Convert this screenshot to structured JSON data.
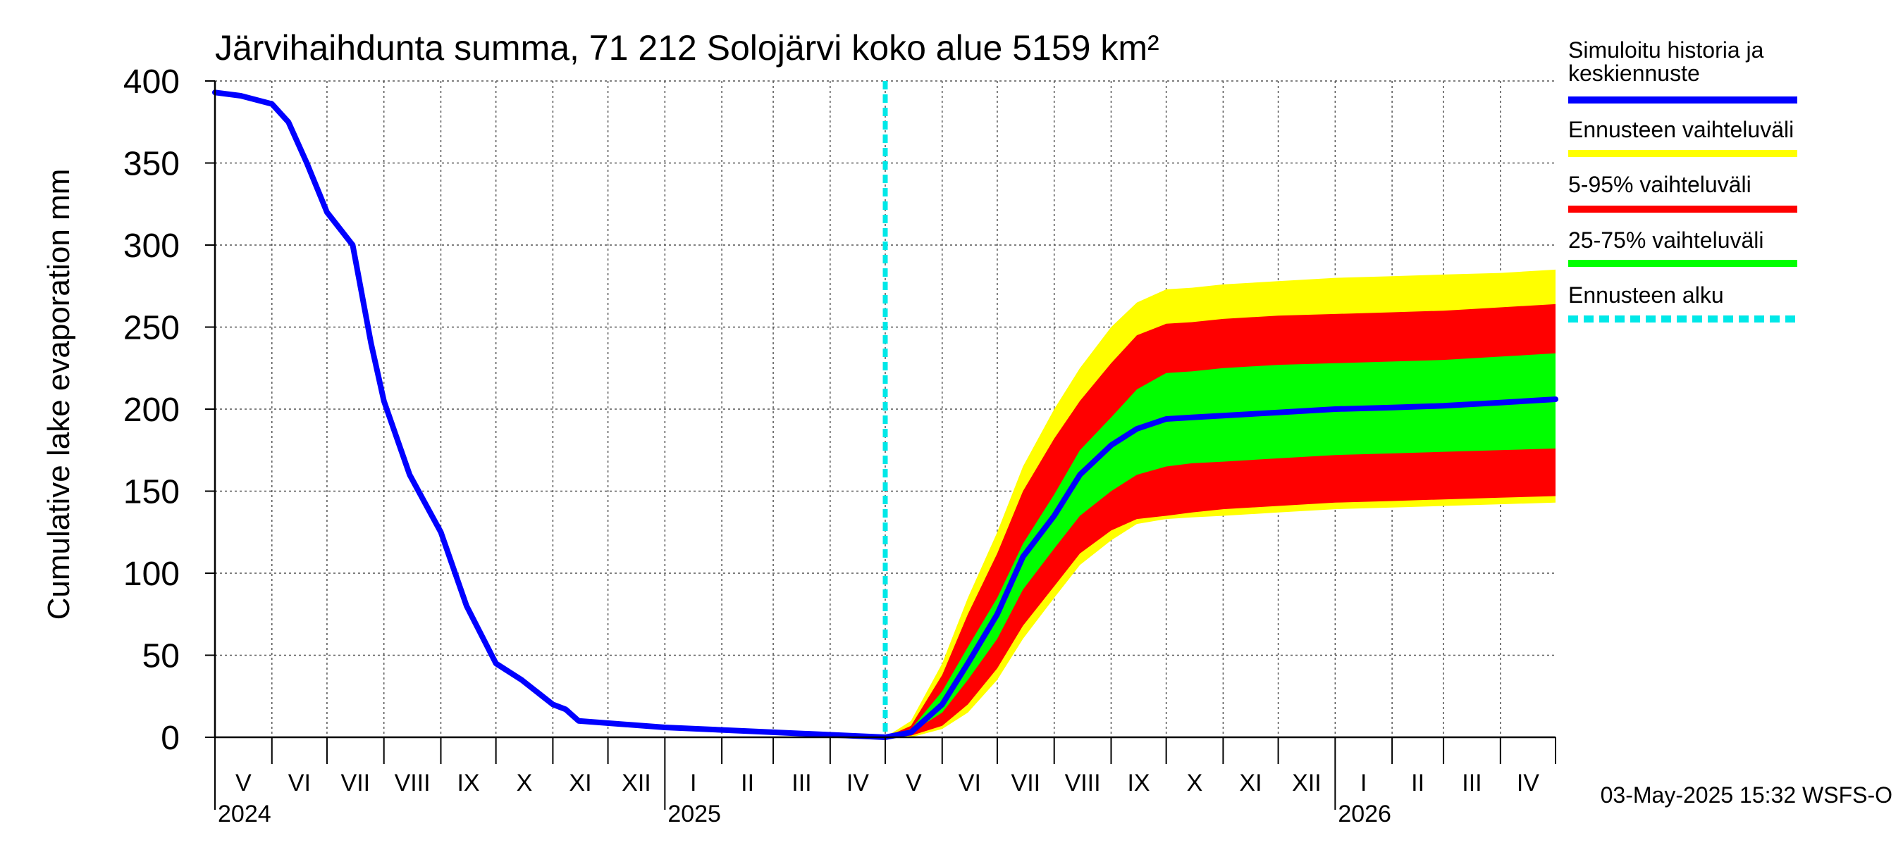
{
  "chart_data": {
    "type": "area",
    "title": "Järvihaihdunta summa, 71 212 Solojärvi koko alue 5159 km²",
    "ylabel": "Cumulative lake evaporation   mm",
    "ylim": [
      0,
      400
    ],
    "yticks": [
      0,
      50,
      100,
      150,
      200,
      250,
      300,
      350,
      400
    ],
    "xlim": [
      "2024-05-01",
      "2026-05-01"
    ],
    "grid": true,
    "legend_position": "right",
    "months": [
      {
        "label": "V",
        "start": "2024-05-01"
      },
      {
        "label": "VI",
        "start": "2024-06-01"
      },
      {
        "label": "VII",
        "start": "2024-07-01"
      },
      {
        "label": "VIII",
        "start": "2024-08-01"
      },
      {
        "label": "IX",
        "start": "2024-09-01"
      },
      {
        "label": "X",
        "start": "2024-10-01"
      },
      {
        "label": "XI",
        "start": "2024-11-01"
      },
      {
        "label": "XII",
        "start": "2024-12-01"
      },
      {
        "label": "I",
        "start": "2025-01-01"
      },
      {
        "label": "II",
        "start": "2025-02-01"
      },
      {
        "label": "III",
        "start": "2025-03-01"
      },
      {
        "label": "IV",
        "start": "2025-04-01"
      },
      {
        "label": "V",
        "start": "2025-05-01"
      },
      {
        "label": "VI",
        "start": "2025-06-01"
      },
      {
        "label": "VII",
        "start": "2025-07-01"
      },
      {
        "label": "VIII",
        "start": "2025-08-01"
      },
      {
        "label": "IX",
        "start": "2025-09-01"
      },
      {
        "label": "X",
        "start": "2025-10-01"
      },
      {
        "label": "XI",
        "start": "2025-11-01"
      },
      {
        "label": "XII",
        "start": "2025-12-01"
      },
      {
        "label": "I",
        "start": "2026-01-01"
      },
      {
        "label": "II",
        "start": "2026-02-01"
      },
      {
        "label": "III",
        "start": "2026-03-01"
      },
      {
        "label": "IV",
        "start": "2026-04-01"
      }
    ],
    "years": [
      {
        "label": "2024",
        "date": "2024-05-01"
      },
      {
        "label": "2025",
        "date": "2025-01-01"
      },
      {
        "label": "2026",
        "date": "2026-01-01"
      }
    ],
    "forecast_start": "2025-05-01",
    "x": [
      "2024-05-01",
      "2024-05-15",
      "2024-06-01",
      "2024-06-10",
      "2024-06-20",
      "2024-07-01",
      "2024-07-15",
      "2024-07-25",
      "2024-08-01",
      "2024-08-15",
      "2024-09-01",
      "2024-09-15",
      "2024-10-01",
      "2024-10-15",
      "2024-11-01",
      "2024-11-08",
      "2024-11-15",
      "2025-01-01",
      "2025-05-01",
      "2025-05-15",
      "2025-06-01",
      "2025-06-15",
      "2025-07-01",
      "2025-07-15",
      "2025-08-01",
      "2025-08-15",
      "2025-09-01",
      "2025-09-15",
      "2025-10-01",
      "2025-10-15",
      "2025-11-01",
      "2025-12-01",
      "2026-01-01",
      "2026-02-01",
      "2026-03-01",
      "2026-04-01",
      "2026-05-01"
    ],
    "series": [
      {
        "name": "Ennusteen vaihteluväli",
        "color": "#ffff00",
        "type": "band",
        "lower": [
          null,
          null,
          null,
          null,
          null,
          null,
          null,
          null,
          null,
          null,
          null,
          null,
          null,
          null,
          null,
          null,
          null,
          null,
          0,
          0,
          5,
          15,
          35,
          60,
          85,
          105,
          120,
          130,
          133,
          134,
          135,
          137,
          139,
          140,
          141,
          142,
          143
        ],
        "upper": [
          null,
          null,
          null,
          null,
          null,
          null,
          null,
          null,
          null,
          null,
          null,
          null,
          null,
          null,
          null,
          null,
          null,
          null,
          0,
          10,
          45,
          85,
          125,
          165,
          200,
          225,
          250,
          265,
          273,
          274,
          276,
          278,
          280,
          281,
          282,
          283,
          285
        ]
      },
      {
        "name": "5-95% vaihteluväli",
        "color": "#ff0000",
        "type": "band",
        "lower": [
          null,
          null,
          null,
          null,
          null,
          null,
          null,
          null,
          null,
          null,
          null,
          null,
          null,
          null,
          null,
          null,
          null,
          null,
          0,
          1,
          7,
          20,
          42,
          68,
          92,
          112,
          126,
          133,
          135,
          137,
          139,
          141,
          143,
          144,
          145,
          146,
          147
        ],
        "upper": [
          null,
          null,
          null,
          null,
          null,
          null,
          null,
          null,
          null,
          null,
          null,
          null,
          null,
          null,
          null,
          null,
          null,
          null,
          0,
          7,
          38,
          75,
          112,
          150,
          182,
          205,
          228,
          245,
          252,
          253,
          255,
          257,
          258,
          259,
          260,
          262,
          264
        ]
      },
      {
        "name": "25-75% vaihteluväli",
        "color": "#00ff00",
        "type": "band",
        "lower": [
          null,
          null,
          null,
          null,
          null,
          null,
          null,
          null,
          null,
          null,
          null,
          null,
          null,
          null,
          null,
          null,
          null,
          null,
          0,
          3,
          15,
          35,
          60,
          90,
          115,
          135,
          150,
          160,
          165,
          167,
          168,
          170,
          172,
          173,
          174,
          175,
          176
        ],
        "upper": [
          null,
          null,
          null,
          null,
          null,
          null,
          null,
          null,
          null,
          null,
          null,
          null,
          null,
          null,
          null,
          null,
          null,
          null,
          0,
          5,
          28,
          55,
          85,
          118,
          148,
          175,
          195,
          212,
          222,
          223,
          225,
          227,
          228,
          229,
          230,
          232,
          234
        ]
      },
      {
        "name": "Simuloitu historia ja keskiennuste",
        "color": "#0000ff",
        "type": "line",
        "values": [
          393,
          391,
          386,
          375,
          350,
          320,
          300,
          240,
          205,
          160,
          125,
          80,
          45,
          35,
          20,
          17,
          10,
          6,
          0,
          3,
          20,
          45,
          75,
          110,
          135,
          160,
          178,
          188,
          194,
          195,
          196,
          198,
          200,
          201,
          202,
          204,
          206
        ]
      }
    ],
    "legend": [
      {
        "label": "Simuloitu historia ja keskiennuste",
        "color": "#0000ff",
        "style": "solid"
      },
      {
        "label": "Ennusteen vaihteluväli",
        "color": "#ffff00",
        "style": "solid"
      },
      {
        "label": "5-95% vaihteluväli",
        "color": "#ff0000",
        "style": "solid"
      },
      {
        "label": "25-75% vaihteluväli",
        "color": "#00ff00",
        "style": "solid"
      },
      {
        "label": "Ennusteen alku",
        "color": "#00e8e8",
        "style": "dashed"
      }
    ],
    "footer": "03-May-2025 15:32 WSFS-O"
  }
}
